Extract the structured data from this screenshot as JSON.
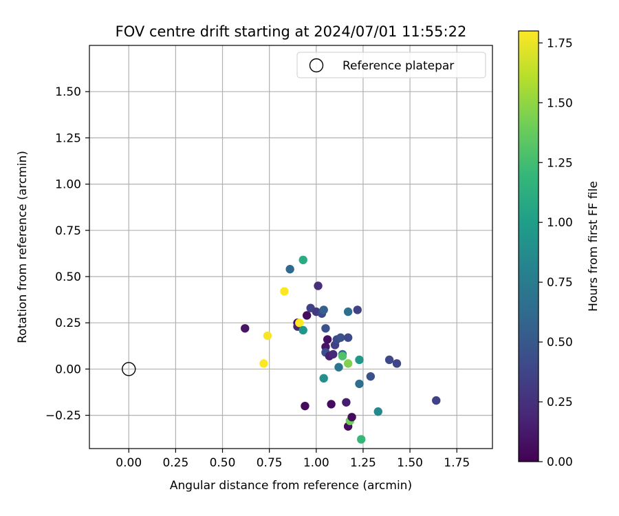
{
  "chart_data": {
    "type": "scatter",
    "title": "FOV centre drift starting at 2024/07/01 11:55:22",
    "xlabel": "Angular distance from reference (arcmin)",
    "ylabel": "Rotation from reference (arcmin)",
    "xlim": [
      -0.21,
      1.94
    ],
    "ylim": [
      -0.43,
      1.75
    ],
    "xticks": [
      0.0,
      0.25,
      0.5,
      0.75,
      1.0,
      1.25,
      1.5,
      1.75
    ],
    "yticks": [
      -0.25,
      0.0,
      0.25,
      0.5,
      0.75,
      1.0,
      1.25,
      1.5
    ],
    "xtick_labels": [
      "0.00",
      "0.25",
      "0.50",
      "0.75",
      "1.00",
      "1.25",
      "1.50",
      "1.75"
    ],
    "ytick_labels": [
      "−0.25",
      "0.00",
      "0.25",
      "0.50",
      "0.75",
      "1.00",
      "1.25",
      "1.50"
    ],
    "grid": true,
    "legend": {
      "placement": "top-right",
      "entries": [
        {
          "label": "Reference platepar",
          "marker": "open-circle",
          "color": "#000000"
        }
      ]
    },
    "reference_point": {
      "x": 0.0,
      "y": 0.0
    },
    "colorbar": {
      "label": "Hours from first FF file",
      "colormap": "viridis",
      "range": [
        0.0,
        1.8
      ],
      "ticks": [
        0.0,
        0.25,
        0.5,
        0.75,
        1.0,
        1.25,
        1.5,
        1.75
      ],
      "tick_labels": [
        "0.00",
        "0.25",
        "0.50",
        "0.75",
        "1.00",
        "1.25",
        "1.50",
        "1.75"
      ]
    },
    "points": [
      {
        "x": 0.62,
        "y": 0.22,
        "hours": 0.1
      },
      {
        "x": 0.72,
        "y": 0.03,
        "hours": 1.8
      },
      {
        "x": 0.74,
        "y": 0.18,
        "hours": 1.78
      },
      {
        "x": 0.83,
        "y": 0.42,
        "hours": 1.8
      },
      {
        "x": 0.86,
        "y": 0.54,
        "hours": 0.6
      },
      {
        "x": 0.9,
        "y": 0.25,
        "hours": 0.02
      },
      {
        "x": 0.9,
        "y": 0.23,
        "hours": 0.18
      },
      {
        "x": 0.91,
        "y": 0.25,
        "hours": 1.8
      },
      {
        "x": 0.93,
        "y": 0.59,
        "hours": 1.1
      },
      {
        "x": 0.93,
        "y": 0.21,
        "hours": 0.95
      },
      {
        "x": 0.94,
        "y": -0.2,
        "hours": 0.05
      },
      {
        "x": 0.95,
        "y": 0.29,
        "hours": 0.05
      },
      {
        "x": 0.97,
        "y": 0.33,
        "hours": 0.35
      },
      {
        "x": 1.0,
        "y": 0.31,
        "hours": 0.3
      },
      {
        "x": 1.01,
        "y": 0.45,
        "hours": 0.25
      },
      {
        "x": 1.03,
        "y": 0.3,
        "hours": 0.4
      },
      {
        "x": 1.04,
        "y": 0.32,
        "hours": 0.55
      },
      {
        "x": 1.04,
        "y": -0.05,
        "hours": 0.9
      },
      {
        "x": 1.05,
        "y": 0.22,
        "hours": 0.45
      },
      {
        "x": 1.05,
        "y": 0.12,
        "hours": 0.1
      },
      {
        "x": 1.05,
        "y": 0.09,
        "hours": 0.42
      },
      {
        "x": 1.06,
        "y": 0.16,
        "hours": 0.08
      },
      {
        "x": 1.07,
        "y": 0.07,
        "hours": 0.15
      },
      {
        "x": 1.08,
        "y": -0.19,
        "hours": 0.05
      },
      {
        "x": 1.09,
        "y": 0.08,
        "hours": 0.2
      },
      {
        "x": 1.1,
        "y": 0.13,
        "hours": 0.35
      },
      {
        "x": 1.11,
        "y": 0.16,
        "hours": 0.4
      },
      {
        "x": 1.12,
        "y": 0.01,
        "hours": 0.7
      },
      {
        "x": 1.13,
        "y": 0.17,
        "hours": 0.45
      },
      {
        "x": 1.14,
        "y": 0.08,
        "hours": 0.6
      },
      {
        "x": 1.14,
        "y": 0.07,
        "hours": 1.3
      },
      {
        "x": 1.16,
        "y": -0.18,
        "hours": 0.15
      },
      {
        "x": 1.17,
        "y": 0.31,
        "hours": 0.65
      },
      {
        "x": 1.17,
        "y": 0.17,
        "hours": 0.4
      },
      {
        "x": 1.17,
        "y": 0.03,
        "hours": 1.45
      },
      {
        "x": 1.17,
        "y": -0.31,
        "hours": 0.05
      },
      {
        "x": 1.18,
        "y": -0.28,
        "hours": 1.4
      },
      {
        "x": 1.19,
        "y": -0.26,
        "hours": 0.05
      },
      {
        "x": 1.22,
        "y": 0.32,
        "hours": 0.35
      },
      {
        "x": 1.23,
        "y": 0.05,
        "hours": 0.95
      },
      {
        "x": 1.23,
        "y": -0.08,
        "hours": 0.65
      },
      {
        "x": 1.24,
        "y": -0.38,
        "hours": 1.2
      },
      {
        "x": 1.29,
        "y": -0.04,
        "hours": 0.45
      },
      {
        "x": 1.33,
        "y": -0.23,
        "hours": 0.85
      },
      {
        "x": 1.39,
        "y": 0.05,
        "hours": 0.4
      },
      {
        "x": 1.43,
        "y": 0.03,
        "hours": 0.38
      },
      {
        "x": 1.64,
        "y": -0.17,
        "hours": 0.35
      }
    ]
  }
}
